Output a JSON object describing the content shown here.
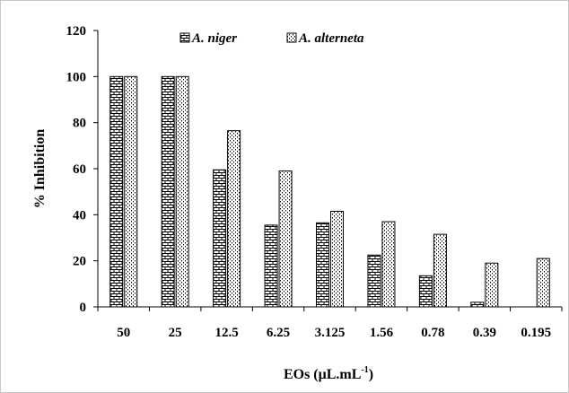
{
  "chart_data": {
    "type": "bar",
    "title": "",
    "xlabel": "EOs (μL.mL",
    "xlabel_sup": "-1",
    "xlabel_tail": ")",
    "ylabel": "% Inhibition",
    "ylim": [
      0,
      120
    ],
    "yticks": [
      "0",
      "20",
      "40",
      "60",
      "80",
      "100",
      "120"
    ],
    "categories": [
      "50",
      "25",
      "12.5",
      "6.25",
      "3.125",
      "1.56",
      "0.78",
      "0.39",
      "0.195"
    ],
    "legend_position": "top-center",
    "grid": false,
    "series": [
      {
        "name": "A. niger",
        "pattern": "brick",
        "values": [
          100,
          100,
          59.5,
          35.5,
          36.5,
          22.5,
          13.5,
          2,
          0
        ]
      },
      {
        "name": "A. alterneta",
        "pattern": "dotted",
        "values": [
          100,
          100,
          76.5,
          59,
          41.5,
          37,
          31.5,
          19,
          21
        ]
      }
    ]
  }
}
